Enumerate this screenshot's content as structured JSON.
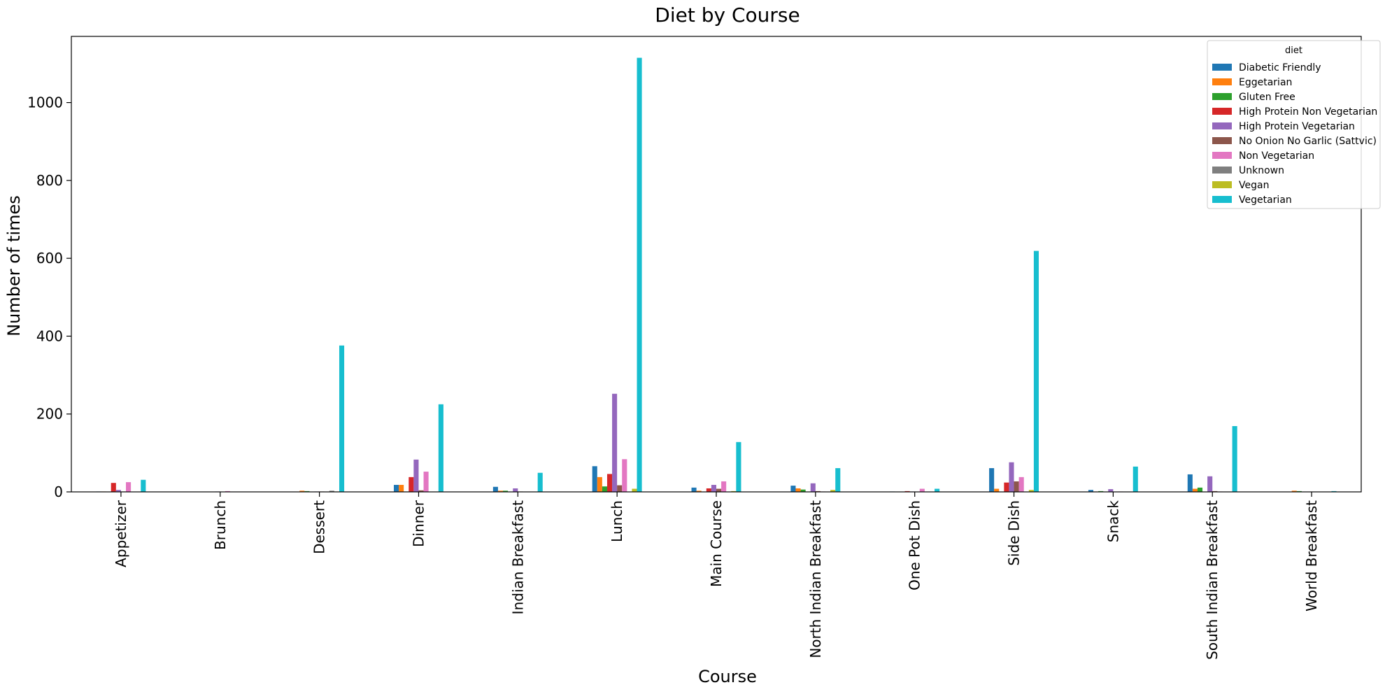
{
  "chart_data": {
    "type": "bar",
    "title": "Diet by Course",
    "xlabel": "Course",
    "ylabel": "Number of times",
    "ylim": [
      0,
      1170
    ],
    "yticks": [
      0,
      200,
      400,
      600,
      800,
      1000
    ],
    "grid": false,
    "legend": {
      "title": "diet",
      "placement": "top-right"
    },
    "categories": [
      "Appetizer",
      "Brunch",
      "Dessert",
      "Dinner",
      "Indian Breakfast",
      "Lunch",
      "Main Course",
      "North Indian Breakfast",
      "One Pot Dish",
      "Side Dish",
      "Snack",
      "South Indian Breakfast",
      "World Breakfast"
    ],
    "series": [
      {
        "name": "Diabetic Friendly",
        "color": "#1f77b4",
        "values": [
          1,
          0,
          0,
          18,
          13,
          66,
          11,
          16,
          1,
          61,
          5,
          45,
          0
        ]
      },
      {
        "name": "Eggetarian",
        "color": "#ff7f0e",
        "values": [
          1,
          0,
          3,
          18,
          3,
          38,
          3,
          9,
          0,
          8,
          1,
          8,
          3
        ]
      },
      {
        "name": "Gluten Free",
        "color": "#2ca02c",
        "values": [
          0,
          0,
          2,
          1,
          3,
          14,
          0,
          6,
          0,
          0,
          2,
          11,
          2
        ]
      },
      {
        "name": "High Protein Non Vegetarian",
        "color": "#d62728",
        "values": [
          23,
          0,
          0,
          38,
          0,
          46,
          9,
          0,
          2,
          24,
          0,
          0,
          0
        ]
      },
      {
        "name": "High Protein Vegetarian",
        "color": "#9467bd",
        "values": [
          5,
          1,
          1,
          83,
          9,
          252,
          18,
          22,
          1,
          76,
          7,
          40,
          0
        ]
      },
      {
        "name": "No Onion No Garlic (Sattvic)",
        "color": "#8c564b",
        "values": [
          1,
          0,
          1,
          4,
          1,
          17,
          8,
          2,
          0,
          27,
          0,
          2,
          0
        ]
      },
      {
        "name": "Non Vegetarian",
        "color": "#e377c2",
        "values": [
          25,
          2,
          0,
          52,
          0,
          84,
          27,
          1,
          8,
          38,
          1,
          1,
          0
        ]
      },
      {
        "name": "Unknown",
        "color": "#7f7f7f",
        "values": [
          0,
          0,
          3,
          0,
          0,
          0,
          0,
          0,
          0,
          0,
          0,
          0,
          0
        ]
      },
      {
        "name": "Vegan",
        "color": "#bcbd22",
        "values": [
          0,
          0,
          1,
          0,
          0,
          8,
          2,
          5,
          0,
          5,
          0,
          0,
          0
        ]
      },
      {
        "name": "Vegetarian",
        "color": "#17becf",
        "values": [
          31,
          0,
          376,
          225,
          49,
          1115,
          128,
          61,
          8,
          619,
          65,
          169,
          2
        ]
      }
    ]
  }
}
